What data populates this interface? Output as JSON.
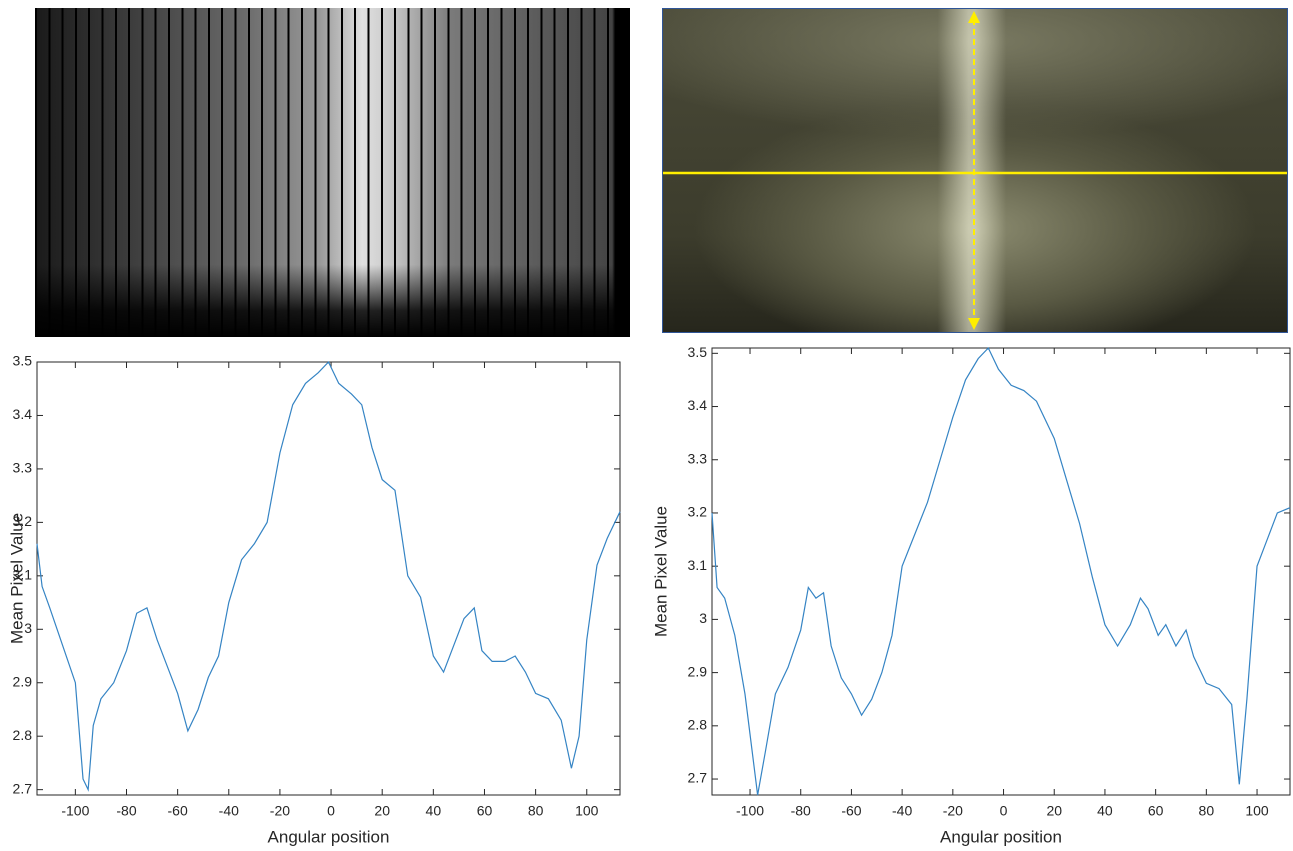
{
  "chart_data": [
    {
      "type": "line",
      "x_label": "Angular position",
      "y_label": "Mean Pixel Value",
      "color": "#3584c4",
      "x": [
        -115,
        -113,
        -110,
        -105,
        -100,
        -97,
        -95,
        -93,
        -90,
        -85,
        -80,
        -76,
        -72,
        -68,
        -64,
        -60,
        -56,
        -52,
        -48,
        -44,
        -40,
        -35,
        -30,
        -25,
        -20,
        -15,
        -10,
        -5,
        -1,
        3,
        8,
        12,
        16,
        20,
        25,
        30,
        35,
        40,
        44,
        48,
        52,
        56,
        59,
        63,
        68,
        72,
        76,
        80,
        85,
        90,
        94,
        97,
        100,
        104,
        108,
        113
      ],
      "values": [
        3.16,
        3.08,
        3.04,
        2.97,
        2.9,
        2.72,
        2.7,
        2.82,
        2.87,
        2.9,
        2.96,
        3.03,
        3.04,
        2.98,
        2.93,
        2.88,
        2.81,
        2.85,
        2.91,
        2.95,
        3.05,
        3.13,
        3.16,
        3.2,
        3.33,
        3.42,
        3.46,
        3.48,
        3.5,
        3.46,
        3.44,
        3.42,
        3.34,
        3.28,
        3.26,
        3.1,
        3.06,
        2.95,
        2.92,
        2.97,
        3.02,
        3.04,
        2.96,
        2.94,
        2.94,
        2.95,
        2.92,
        2.88,
        2.87,
        2.83,
        2.74,
        2.8,
        2.98,
        3.12,
        3.17,
        3.22
      ],
      "xlim": [
        -115,
        113
      ],
      "ylim": [
        2.69,
        3.5
      ],
      "xticks": [
        -100,
        -80,
        -60,
        -40,
        -20,
        0,
        20,
        40,
        60,
        80,
        100
      ],
      "yticks": [
        2.7,
        2.8,
        2.9,
        3,
        3.1,
        3.2,
        3.3,
        3.4,
        3.5
      ]
    },
    {
      "type": "line",
      "x_label": "Angular position",
      "y_label": "Mean Pixel Value",
      "color": "#3584c4",
      "x": [
        -115,
        -113,
        -110,
        -106,
        -102,
        -97,
        -94,
        -90,
        -85,
        -80,
        -77,
        -74,
        -71,
        -68,
        -64,
        -60,
        -56,
        -52,
        -48,
        -44,
        -40,
        -35,
        -30,
        -25,
        -20,
        -15,
        -10,
        -6,
        -2,
        3,
        8,
        13,
        20,
        25,
        30,
        35,
        40,
        45,
        50,
        54,
        57,
        61,
        64,
        68,
        72,
        75,
        80,
        85,
        90,
        93,
        96,
        100,
        104,
        108,
        113
      ],
      "values": [
        3.2,
        3.06,
        3.04,
        2.97,
        2.86,
        2.67,
        2.75,
        2.86,
        2.91,
        2.98,
        3.06,
        3.04,
        3.05,
        2.95,
        2.89,
        2.86,
        2.82,
        2.85,
        2.9,
        2.97,
        3.1,
        3.16,
        3.22,
        3.3,
        3.38,
        3.45,
        3.49,
        3.51,
        3.47,
        3.44,
        3.43,
        3.41,
        3.34,
        3.26,
        3.18,
        3.08,
        2.99,
        2.95,
        2.99,
        3.04,
        3.02,
        2.97,
        2.99,
        2.95,
        2.98,
        2.93,
        2.88,
        2.87,
        2.84,
        2.69,
        2.85,
        3.1,
        3.15,
        3.2,
        3.21
      ],
      "xlim": [
        -115,
        113
      ],
      "ylim": [
        2.67,
        3.51
      ],
      "xticks": [
        -100,
        -80,
        -60,
        -40,
        -20,
        0,
        20,
        40,
        60,
        80,
        100
      ],
      "yticks": [
        2.7,
        2.8,
        2.9,
        3,
        3.1,
        3.2,
        3.3,
        3.4,
        3.5
      ]
    }
  ]
}
